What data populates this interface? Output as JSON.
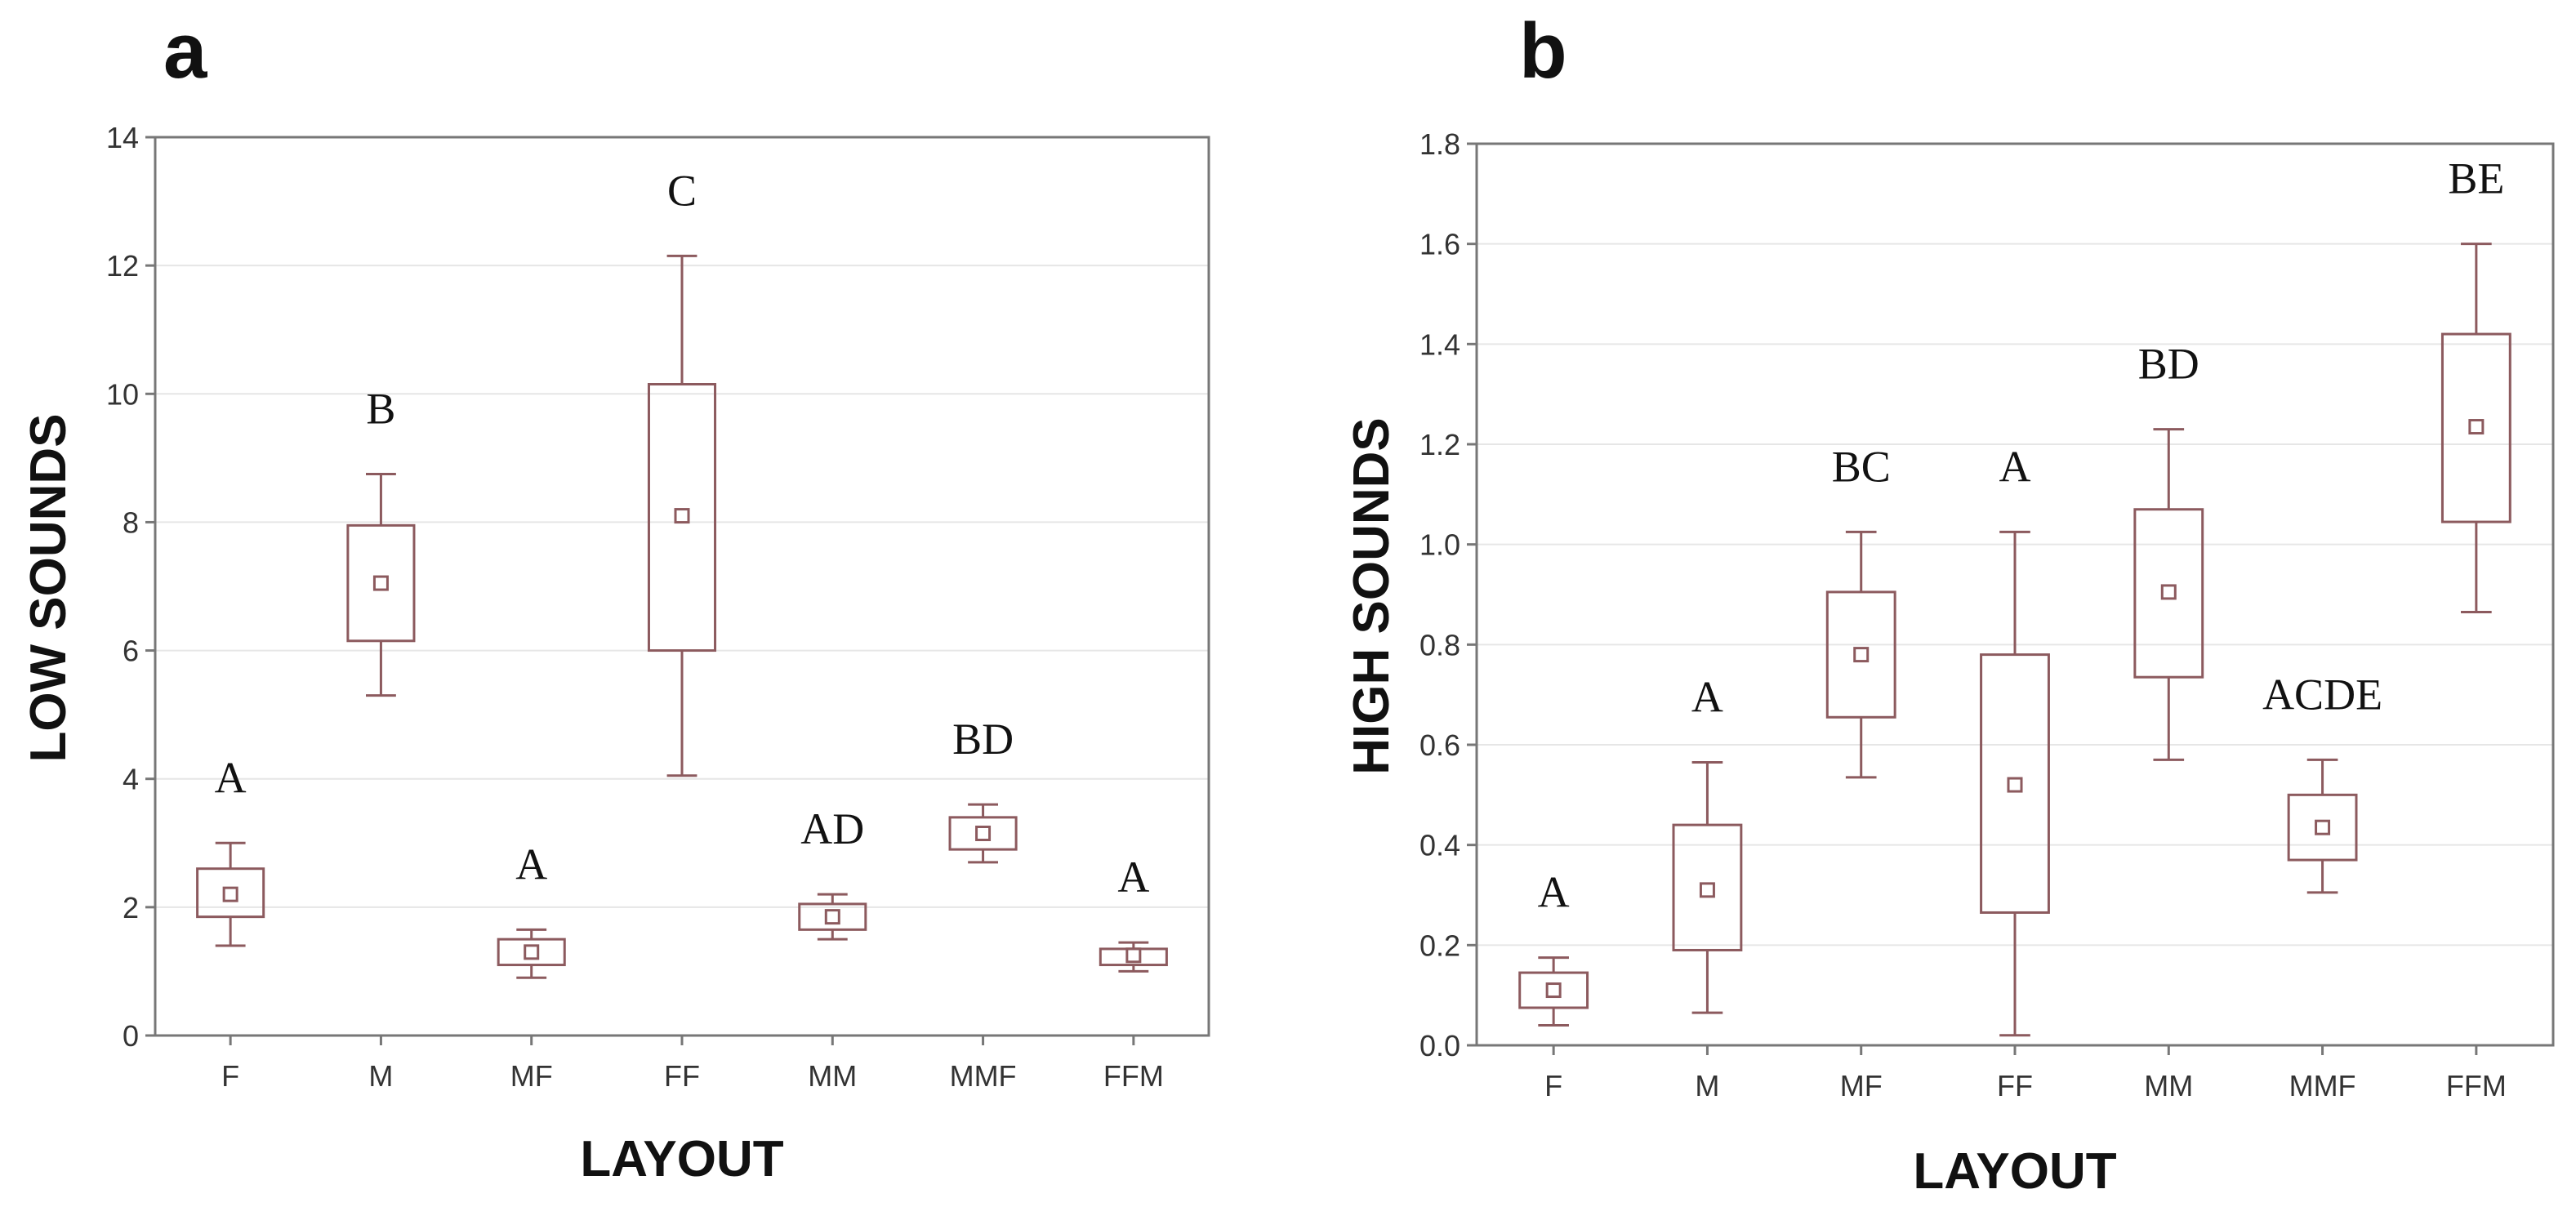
{
  "chart_data": [
    {
      "type": "box",
      "panel_label": "a",
      "xlabel": "LAYOUT",
      "ylabel": "LOW SOUNDS",
      "ylim": [
        0,
        14
      ],
      "yticks": [
        "0",
        "2",
        "4",
        "6",
        "8",
        "10",
        "12",
        "14"
      ],
      "ytick_values": [
        0,
        2,
        4,
        6,
        8,
        10,
        12,
        14
      ],
      "grid": true,
      "categories": [
        "F",
        "M",
        "MF",
        "FF",
        "MM",
        "MMF",
        "FFM"
      ],
      "groups": [
        {
          "name": "F",
          "mean": 2.2,
          "q1": 1.85,
          "q3": 2.6,
          "min": 1.4,
          "max": 3.0,
          "letter": "A"
        },
        {
          "name": "M",
          "mean": 7.05,
          "q1": 6.15,
          "q3": 7.95,
          "min": 5.3,
          "max": 8.75,
          "letter": "B"
        },
        {
          "name": "MF",
          "mean": 1.3,
          "q1": 1.1,
          "q3": 1.5,
          "min": 0.9,
          "max": 1.65,
          "letter": "A"
        },
        {
          "name": "FF",
          "mean": 8.1,
          "q1": 6.0,
          "q3": 10.15,
          "min": 4.05,
          "max": 12.15,
          "letter": "C"
        },
        {
          "name": "MM",
          "mean": 1.85,
          "q1": 1.65,
          "q3": 2.05,
          "min": 1.5,
          "max": 2.2,
          "letter": "AD"
        },
        {
          "name": "MMF",
          "mean": 3.15,
          "q1": 2.9,
          "q3": 3.4,
          "min": 2.7,
          "max": 3.6,
          "letter": "BD"
        },
        {
          "name": "FFM",
          "mean": 1.25,
          "q1": 1.1,
          "q3": 1.35,
          "min": 1.0,
          "max": 1.45,
          "letter": "A"
        }
      ]
    },
    {
      "type": "box",
      "panel_label": "b",
      "xlabel": "LAYOUT",
      "ylabel": "HIGH SOUNDS",
      "ylim": [
        0,
        1.8
      ],
      "yticks": [
        "0.0",
        "0.2",
        "0.4",
        "0.6",
        "0.8",
        "1.0",
        "1.2",
        "1.4",
        "1.6",
        "1.8"
      ],
      "ytick_values": [
        0,
        0.2,
        0.4,
        0.6,
        0.8,
        1.0,
        1.2,
        1.4,
        1.6,
        1.8
      ],
      "grid": true,
      "categories": [
        "F",
        "M",
        "MF",
        "FF",
        "MM",
        "MMF",
        "FFM"
      ],
      "groups": [
        {
          "name": "F",
          "mean": 0.11,
          "q1": 0.075,
          "q3": 0.145,
          "min": 0.04,
          "max": 0.175,
          "letter": "A"
        },
        {
          "name": "M",
          "mean": 0.31,
          "q1": 0.19,
          "q3": 0.44,
          "min": 0.065,
          "max": 0.565,
          "letter": "A"
        },
        {
          "name": "MF",
          "mean": 0.78,
          "q1": 0.655,
          "q3": 0.905,
          "min": 0.535,
          "max": 1.025,
          "letter": "BC"
        },
        {
          "name": "FF",
          "mean": 0.52,
          "q1": 0.265,
          "q3": 0.78,
          "min": 0.02,
          "max": 1.025,
          "letter": "A"
        },
        {
          "name": "MM",
          "mean": 0.905,
          "q1": 0.735,
          "q3": 1.07,
          "min": 0.57,
          "max": 1.23,
          "letter": "BD"
        },
        {
          "name": "MMF",
          "mean": 0.435,
          "q1": 0.37,
          "q3": 0.5,
          "min": 0.305,
          "max": 0.57,
          "letter": "ACDE"
        },
        {
          "name": "FFM",
          "mean": 1.235,
          "q1": 1.045,
          "q3": 1.42,
          "min": 0.865,
          "max": 1.6,
          "letter": "BE"
        }
      ]
    }
  ]
}
